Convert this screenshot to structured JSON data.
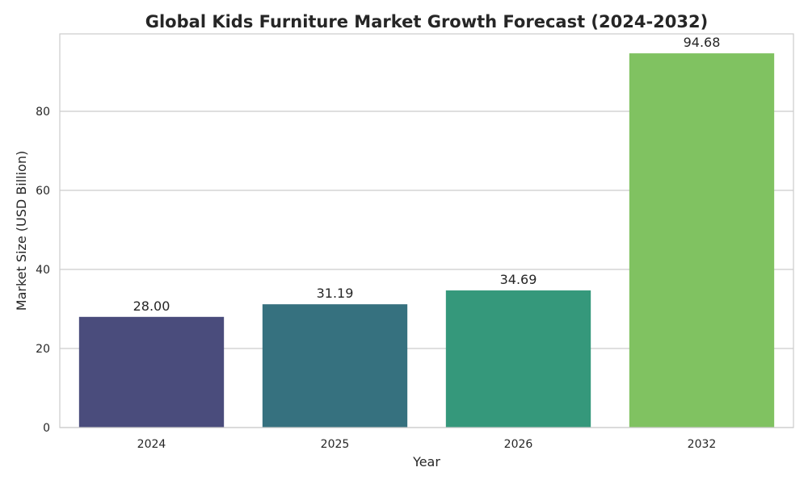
{
  "chart_data": {
    "type": "bar",
    "title": "Global Kids Furniture Market Growth Forecast (2024-2032)",
    "xlabel": "Year",
    "ylabel": "Market Size (USD Billion)",
    "categories": [
      "2024",
      "2025",
      "2026",
      "2032"
    ],
    "values": [
      28.0,
      31.19,
      34.69,
      94.68
    ],
    "data_labels": [
      "28.00",
      "31.19",
      "34.69",
      "94.68"
    ],
    "colors": [
      "#4a4c7c",
      "#36717f",
      "#35987b",
      "#80c261"
    ],
    "ylim": [
      0,
      99.6
    ],
    "yticks": [
      0,
      20,
      40,
      60,
      80
    ],
    "ytick_labels": [
      "0",
      "20",
      "40",
      "60",
      "80"
    ],
    "grid": "horizontal",
    "legend": "none"
  }
}
